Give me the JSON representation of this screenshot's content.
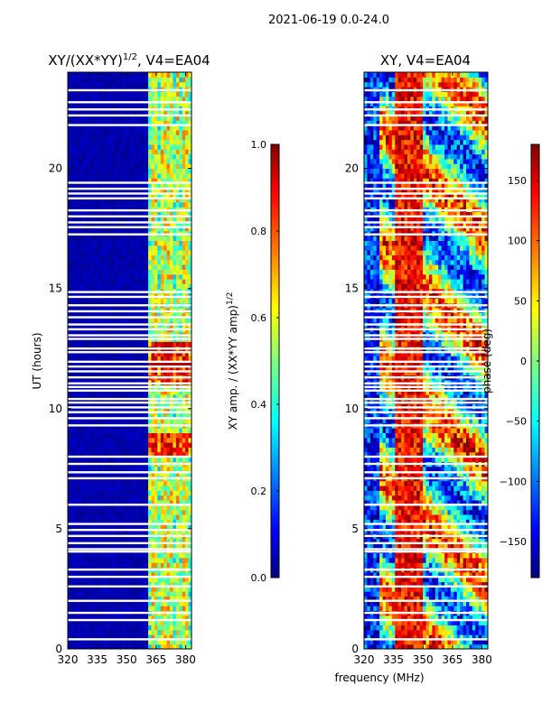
{
  "figure": {
    "suptitle": "2021-06-19 0.0-24.0",
    "shared_xlabel": "frequency (MHz)"
  },
  "colors": {
    "jet": [
      "#00007f",
      "#0000ff",
      "#007fff",
      "#00ffff",
      "#7fff7f",
      "#ffff00",
      "#ff7f00",
      "#ff0000",
      "#7f0000"
    ],
    "flag_gap": "#ffffff",
    "axis": "#000000"
  },
  "chart_data": [
    {
      "type": "heatmap",
      "id": "amplitude-ratio",
      "title_prefix": "XY/(XX*YY)",
      "title_exp": "1/2",
      "title_suffix": ", V4=EA04",
      "xlabel": "",
      "ylabel": "UT (hours)",
      "xlim": [
        320,
        383
      ],
      "ylim": [
        0,
        24
      ],
      "xticks": [
        320,
        335,
        350,
        365,
        380
      ],
      "yticks": [
        0,
        5,
        10,
        15,
        20
      ],
      "colorbar": {
        "label": "XY amp. / (XX*YY amp)",
        "label_exp": "1/2",
        "range": [
          0.0,
          1.0
        ],
        "ticks": [
          "0.0",
          "0.2",
          "0.4",
          "0.6",
          "0.8",
          "1.0"
        ],
        "tick_values": [
          0.0,
          0.2,
          0.4,
          0.6,
          0.8,
          1.0
        ]
      },
      "value_summary": {
        "below_361_MHz": 0.02,
        "above_361_MHz_typical": 0.45,
        "peak_hours": [
          11.5,
          12.3,
          8.5
        ],
        "peak_value": 0.85,
        "bright_channel_columns_MHz": [
          364,
          369,
          372,
          376,
          380
        ]
      }
    },
    {
      "type": "heatmap",
      "id": "phase",
      "title": "XY, V4=EA04",
      "xlabel": "",
      "ylabel": "",
      "xlim": [
        320,
        383
      ],
      "ylim": [
        0,
        24
      ],
      "xticks": [
        320,
        335,
        350,
        365,
        380
      ],
      "yticks": [
        0,
        5,
        10,
        15,
        20
      ],
      "colorbar": {
        "label": "phase (deg)",
        "range": [
          -180,
          180
        ],
        "ticks": [
          "−150",
          "−100",
          "−50",
          "0",
          "50",
          "100",
          "150"
        ],
        "tick_values": [
          -150,
          -100,
          -50,
          0,
          50,
          100,
          150
        ]
      },
      "value_summary": {
        "range_deg": [
          -180,
          180
        ],
        "band_335_350_MHz": "mostly +90 to +180",
        "low_frequency_edge": "mostly -180 to -60"
      }
    }
  ],
  "flagged_hours": [
    0.4,
    1.2,
    1.5,
    2.0,
    2.6,
    3.0,
    3.3,
    4.05,
    4.15,
    4.4,
    4.7,
    4.95,
    5.2,
    6.0,
    7.1,
    7.35,
    7.7,
    8.0,
    9.3,
    9.6,
    9.85,
    10.05,
    10.25,
    10.4,
    10.75,
    10.9,
    11.05,
    11.3,
    11.55,
    11.75,
    11.95,
    12.35,
    12.5,
    12.9,
    13.05,
    13.3,
    13.5,
    13.8,
    14.05,
    14.3,
    14.65,
    14.85,
    17.25,
    17.55,
    17.75,
    18.0,
    18.25,
    18.75,
    18.95,
    19.15,
    19.4,
    21.8,
    22.2,
    22.45,
    22.75,
    23.25
  ]
}
